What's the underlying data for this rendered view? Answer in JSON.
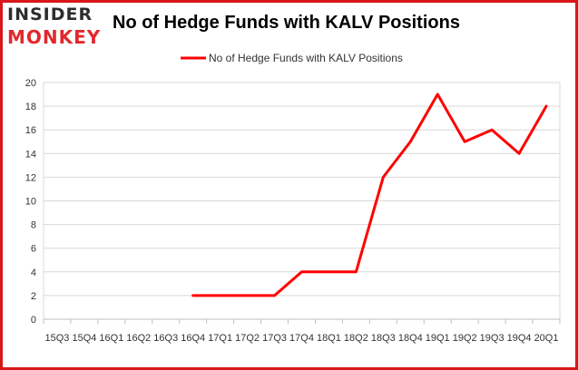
{
  "brand": {
    "top": "INSIDER",
    "bottom": "MONKEY"
  },
  "chart_data": {
    "type": "line",
    "title": "No of Hedge Funds with KALV Positions",
    "xlabel": "",
    "ylabel": "",
    "categories": [
      "15Q3",
      "15Q4",
      "16Q1",
      "16Q2",
      "16Q3",
      "16Q4",
      "17Q1",
      "17Q2",
      "17Q3",
      "17Q4",
      "18Q1",
      "18Q2",
      "18Q3",
      "18Q4",
      "19Q1",
      "19Q2",
      "19Q3",
      "19Q4",
      "20Q1"
    ],
    "series": [
      {
        "name": "No of Hedge Funds with KALV Positions",
        "color": "#ff0000",
        "values": [
          null,
          null,
          null,
          null,
          null,
          2,
          2,
          2,
          2,
          4,
          4,
          4,
          12,
          15,
          19,
          15,
          16,
          14,
          18
        ]
      }
    ],
    "ylim": [
      0,
      20
    ],
    "yticks": [
      0,
      2,
      4,
      6,
      8,
      10,
      12,
      14,
      16,
      18,
      20
    ],
    "grid": true,
    "legend_position": "top-center"
  }
}
